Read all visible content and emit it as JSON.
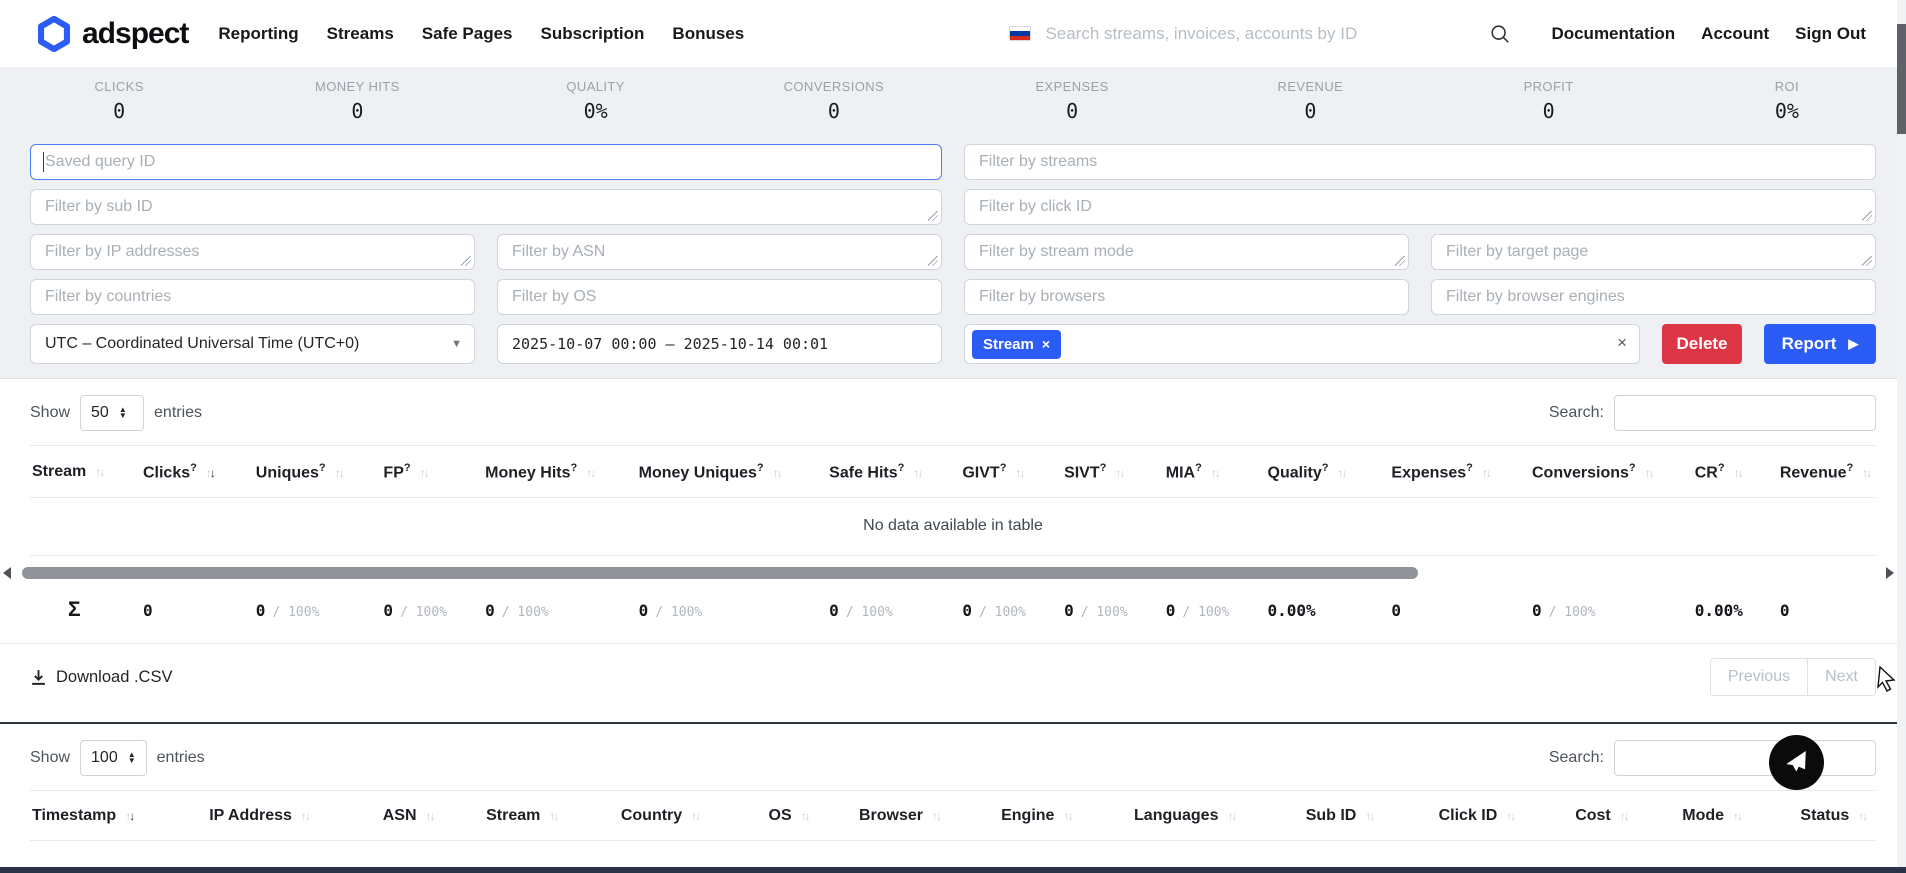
{
  "navbar": {
    "brand": "adspect",
    "links": [
      "Reporting",
      "Streams",
      "Safe Pages",
      "Subscription",
      "Bonuses"
    ],
    "search_placeholder": "Search streams, invoices, accounts by ID",
    "language_flag": "russian-flag",
    "right_links": [
      "Documentation",
      "Account",
      "Sign Out"
    ]
  },
  "stats": [
    {
      "label": "CLICKS",
      "value": "0"
    },
    {
      "label": "MONEY HITS",
      "value": "0"
    },
    {
      "label": "QUALITY",
      "value": "0%"
    },
    {
      "label": "CONVERSIONS",
      "value": "0"
    },
    {
      "label": "EXPENSES",
      "value": "0"
    },
    {
      "label": "REVENUE",
      "value": "0"
    },
    {
      "label": "PROFIT",
      "value": "0"
    },
    {
      "label": "ROI",
      "value": "0%"
    }
  ],
  "filters": {
    "saved_query_placeholder": "Saved query ID",
    "streams_placeholder": "Filter by streams",
    "sub_id_placeholder": "Filter by sub ID",
    "click_id_placeholder": "Filter by click ID",
    "ip_placeholder": "Filter by IP addresses",
    "asn_placeholder": "Filter by ASN",
    "stream_mode_placeholder": "Filter by stream mode",
    "target_page_placeholder": "Filter by target page",
    "countries_placeholder": "Filter by countries",
    "os_placeholder": "Filter by OS",
    "browsers_placeholder": "Filter by browsers",
    "engines_placeholder": "Filter by browser engines",
    "timezone": "UTC – Coordinated Universal Time (UTC+0)",
    "date_range": "2025-10-07 00:00 – 2025-10-14 00:01",
    "tag_label": "Stream",
    "tag_remove": "×",
    "clear_label": "×",
    "delete_label": "Delete",
    "report_label": "Report",
    "report_play": "▶"
  },
  "report_table": {
    "show_label": "Show",
    "page_size": "50",
    "entries_label": "entries",
    "search_label": "Search:",
    "columns": [
      {
        "label": "Stream",
        "help": false,
        "sorted": null
      },
      {
        "label": "Clicks",
        "help": true,
        "sorted": "desc"
      },
      {
        "label": "Uniques",
        "help": true,
        "sorted": null
      },
      {
        "label": "FP",
        "help": true,
        "sorted": null
      },
      {
        "label": "Money Hits",
        "help": true,
        "sorted": null
      },
      {
        "label": "Money Uniques",
        "help": true,
        "sorted": null
      },
      {
        "label": "Safe Hits",
        "help": true,
        "sorted": null
      },
      {
        "label": "GIVT",
        "help": true,
        "sorted": null
      },
      {
        "label": "SIVT",
        "help": true,
        "sorted": null
      },
      {
        "label": "MIA",
        "help": true,
        "sorted": null
      },
      {
        "label": "Quality",
        "help": true,
        "sorted": null
      },
      {
        "label": "Expenses",
        "help": true,
        "sorted": null
      },
      {
        "label": "Conversions",
        "help": true,
        "sorted": null
      },
      {
        "label": "CR",
        "help": true,
        "sorted": null
      },
      {
        "label": "Revenue",
        "help": true,
        "sorted": null
      }
    ],
    "empty_text": "No data available in table",
    "summary": [
      {
        "main": "Σ",
        "sub": ""
      },
      {
        "main": "0",
        "sub": ""
      },
      {
        "main": "0",
        "sub": "/ 100%"
      },
      {
        "main": "0",
        "sub": "/ 100%"
      },
      {
        "main": "0",
        "sub": "/ 100%"
      },
      {
        "main": "0",
        "sub": "/ 100%"
      },
      {
        "main": "0",
        "sub": "/ 100%"
      },
      {
        "main": "0",
        "sub": "/ 100%"
      },
      {
        "main": "0",
        "sub": "/ 100%"
      },
      {
        "main": "0",
        "sub": "/ 100%"
      },
      {
        "main": "0.00%",
        "sub": ""
      },
      {
        "main": "0",
        "sub": ""
      },
      {
        "main": "0",
        "sub": "/ 100%"
      },
      {
        "main": "0.00%",
        "sub": ""
      },
      {
        "main": "0",
        "sub": ""
      }
    ],
    "download_label": "Download .CSV",
    "prev_label": "Previous",
    "next_label": "Next"
  },
  "clicks_table": {
    "show_label": "Show",
    "page_size": "100",
    "entries_label": "entries",
    "search_label": "Search:",
    "columns": [
      {
        "label": "Timestamp",
        "help": false,
        "sorted": "desc"
      },
      {
        "label": "IP Address",
        "help": false,
        "sorted": null
      },
      {
        "label": "ASN",
        "help": false,
        "sorted": null
      },
      {
        "label": "Stream",
        "help": false,
        "sorted": null
      },
      {
        "label": "Country",
        "help": false,
        "sorted": null
      },
      {
        "label": "OS",
        "help": false,
        "sorted": null
      },
      {
        "label": "Browser",
        "help": false,
        "sorted": null
      },
      {
        "label": "Engine",
        "help": false,
        "sorted": null
      },
      {
        "label": "Languages",
        "help": false,
        "sorted": null
      },
      {
        "label": "Sub ID",
        "help": false,
        "sorted": null
      },
      {
        "label": "Click ID",
        "help": false,
        "sorted": null
      },
      {
        "label": "Cost",
        "help": false,
        "sorted": null
      },
      {
        "label": "Mode",
        "help": false,
        "sorted": null
      },
      {
        "label": "Status",
        "help": false,
        "sorted": null
      }
    ]
  },
  "colors": {
    "accent_blue": "#2b5cf5",
    "danger_red": "#dc3545",
    "section_gray": "#eef0f3",
    "footer_navy": "#283347"
  }
}
